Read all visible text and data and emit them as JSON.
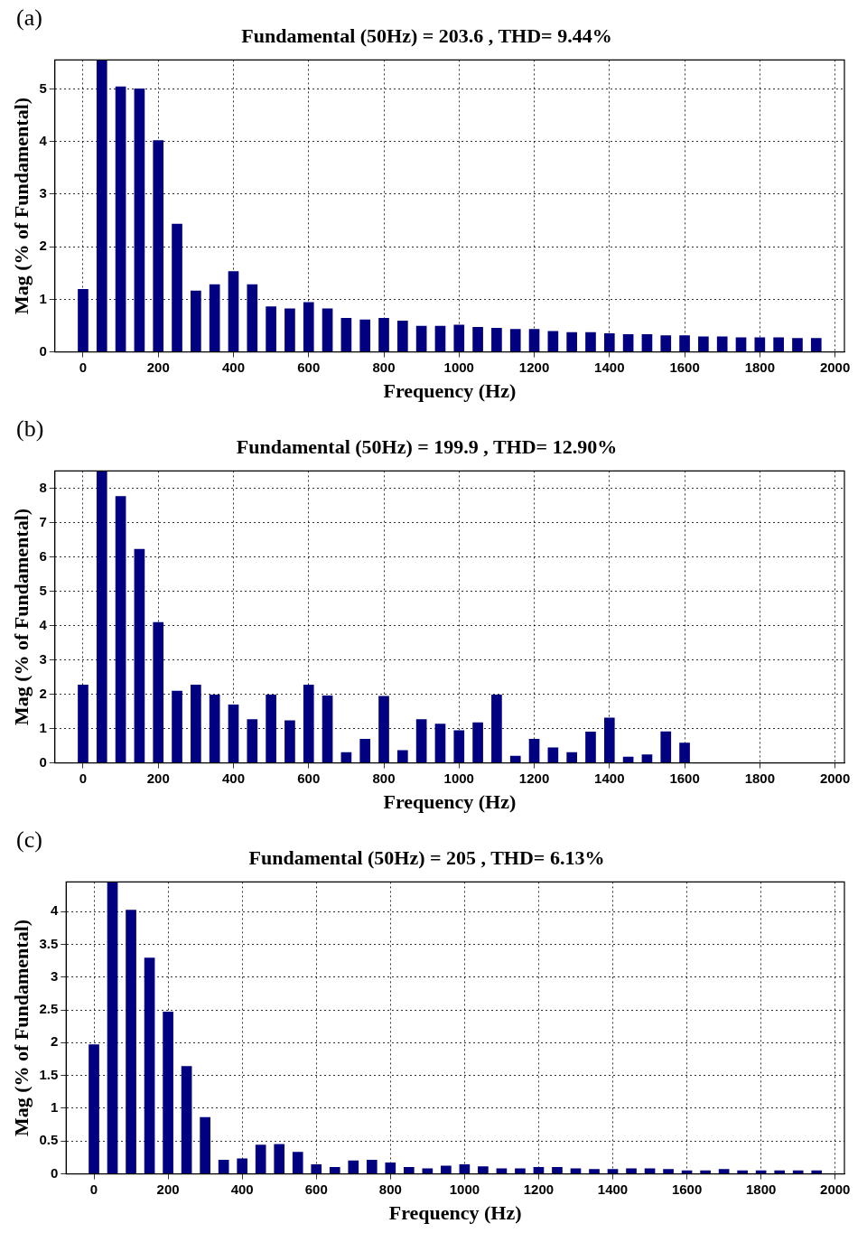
{
  "chart_data": [
    {
      "type": "bar",
      "title": "Fundamental (50Hz) = 203.6 , THD= 9.44%",
      "xlabel": "Frequency (Hz)",
      "ylabel": "Mag (% of Fundamental)",
      "annotations": [
        "(a)"
      ],
      "categories": [
        null,
        "0",
        null,
        null,
        null,
        "200",
        null,
        null,
        null,
        "400",
        null,
        null,
        null,
        "600",
        null,
        null,
        null,
        "800",
        null,
        null,
        null,
        "1000",
        null,
        null,
        null,
        "1200",
        null,
        null,
        null,
        "1400",
        null,
        null,
        null,
        "1600",
        null,
        null,
        null,
        "1800",
        null,
        null,
        null,
        "2000"
      ],
      "series": [
        {
          "color": "#000080",
          "values": [
            null,
            1.19,
            5.55,
            5.04,
            5.0,
            4.02,
            2.43,
            1.16,
            1.28,
            1.53,
            1.28,
            0.86,
            0.82,
            0.94,
            0.82,
            0.64,
            0.61,
            0.64,
            0.59,
            0.49,
            0.49,
            0.51,
            0.47,
            0.45,
            0.43,
            0.43,
            0.39,
            0.37,
            0.37,
            0.35,
            0.33,
            0.33,
            0.31,
            0.31,
            0.29,
            0.29,
            0.27,
            0.27,
            0.27,
            0.26,
            0.26,
            null
          ]
        }
      ],
      "ylim": [
        0,
        5.55
      ],
      "yticks": [
        0,
        1,
        2,
        3,
        4,
        5
      ],
      "grid": true,
      "legend": false
    },
    {
      "type": "bar",
      "title": "Fundamental (50Hz) = 199.9 , THD= 12.90%",
      "xlabel": "Frequency (Hz)",
      "ylabel": "Mag (% of Fundamental)",
      "annotations": [
        "(b)"
      ],
      "categories": [
        null,
        "0",
        null,
        null,
        null,
        "200",
        null,
        null,
        null,
        "400",
        null,
        null,
        null,
        "600",
        null,
        null,
        null,
        "800",
        null,
        null,
        null,
        "1000",
        null,
        null,
        null,
        "1200",
        null,
        null,
        null,
        "1400",
        null,
        null,
        null,
        "1600",
        null,
        null,
        null,
        "1800",
        null,
        null,
        null,
        "2000"
      ],
      "series": [
        {
          "color": "#000080",
          "values": [
            null,
            2.27,
            8.5,
            7.76,
            6.22,
            4.09,
            2.09,
            2.27,
            1.98,
            1.69,
            1.26,
            1.98,
            1.23,
            2.27,
            1.95,
            0.3,
            0.69,
            1.94,
            0.36,
            1.26,
            1.13,
            0.94,
            1.17,
            1.98,
            0.2,
            0.69,
            0.44,
            0.3,
            0.9,
            1.31,
            0.17,
            0.24,
            0.91,
            0.58,
            null,
            null,
            null,
            null,
            null,
            null,
            null,
            null
          ]
        }
      ],
      "ylim": [
        0,
        8.5
      ],
      "yticks": [
        0,
        1,
        2,
        3,
        4,
        5,
        6,
        7,
        8
      ],
      "grid": true,
      "legend": false
    },
    {
      "type": "bar",
      "title": "Fundamental (50Hz) = 205 , THD= 6.13%",
      "xlabel": "Frequency (Hz)",
      "ylabel": "Mag (% of Fundamental)",
      "annotations": [
        "(c)"
      ],
      "categories": [
        null,
        "0",
        null,
        null,
        null,
        "200",
        null,
        null,
        null,
        "400",
        null,
        null,
        null,
        "600",
        null,
        null,
        null,
        "800",
        null,
        null,
        null,
        "1000",
        null,
        null,
        null,
        "1200",
        null,
        null,
        null,
        "1400",
        null,
        null,
        null,
        "1600",
        null,
        null,
        null,
        "1800",
        null,
        null,
        null,
        "2000"
      ],
      "series": [
        {
          "color": "#000080",
          "values": [
            null,
            1.97,
            4.45,
            4.02,
            3.29,
            2.47,
            1.64,
            0.86,
            0.21,
            0.23,
            0.44,
            0.45,
            0.33,
            0.14,
            0.1,
            0.2,
            0.21,
            0.17,
            0.1,
            0.08,
            0.12,
            0.14,
            0.11,
            0.08,
            0.08,
            0.1,
            0.1,
            0.08,
            0.07,
            0.07,
            0.08,
            0.08,
            0.07,
            0.05,
            0.05,
            0.07,
            0.05,
            0.05,
            0.05,
            0.05,
            0.05,
            null
          ]
        }
      ],
      "ylim": [
        0,
        4.45
      ],
      "yticks": [
        0,
        0.5,
        1,
        1.5,
        2,
        2.5,
        3,
        3.5,
        4
      ],
      "grid": true,
      "legend": false
    }
  ]
}
